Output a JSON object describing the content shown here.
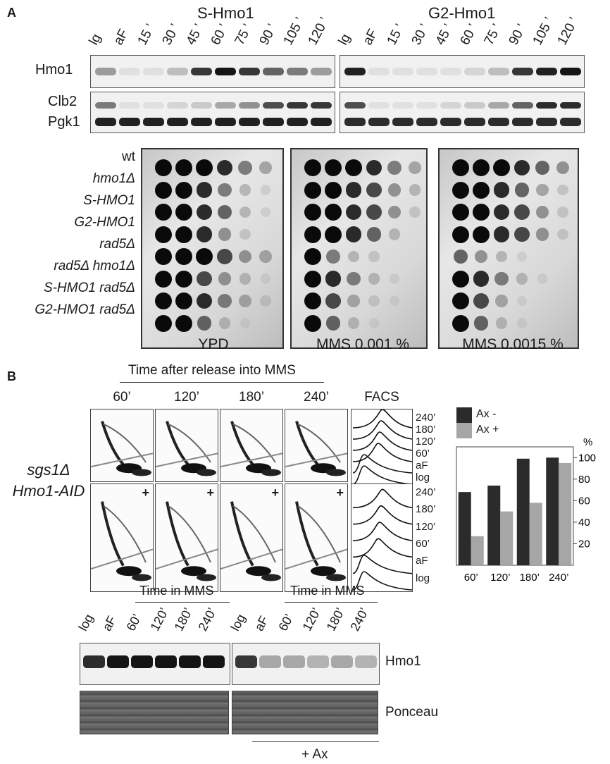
{
  "panel_a": {
    "letter": "A",
    "s_title": "S-Hmo1",
    "g2_title": "G2-Hmo1",
    "lanes": [
      "lg",
      "aF",
      "15 ’",
      "30 ’",
      "45 ’",
      "60 ’",
      "75 ’",
      "90 ’",
      "105 ’",
      "120 ’"
    ],
    "row_hmo1": "Hmo1",
    "row_clb2": "Clb2",
    "row_pgk1": "Pgk1",
    "s_hmo1_intensity": [
      0.35,
      0.05,
      0.05,
      0.2,
      0.8,
      0.95,
      0.8,
      0.6,
      0.5,
      0.35
    ],
    "g2_hmo1_intensity": [
      0.9,
      0.05,
      0.05,
      0.05,
      0.05,
      0.1,
      0.2,
      0.8,
      0.9,
      0.95
    ],
    "s_clb2_intensity": [
      0.5,
      0.05,
      0.05,
      0.1,
      0.15,
      0.3,
      0.4,
      0.7,
      0.8,
      0.8
    ],
    "g2_clb2_intensity": [
      0.7,
      0.05,
      0.05,
      0.05,
      0.1,
      0.15,
      0.3,
      0.6,
      0.85,
      0.85
    ],
    "strains": [
      "wt",
      "hmo1Δ",
      "S-HMO1",
      "G2-HMO1",
      "rad5Δ",
      "rad5Δ hmo1Δ",
      "S-HMO1 rad5Δ",
      "G2-HMO1 rad5Δ"
    ],
    "plate_captions": [
      "YPD",
      "MMS 0.001 %",
      "MMS 0.0015 %"
    ]
  },
  "panel_b": {
    "letter": "B",
    "time_header": "Time after release into MMS",
    "time_labels": [
      "60’",
      "120’",
      "180’",
      "240’"
    ],
    "facs_title": "FACS",
    "facs_labels": [
      "240’",
      "180’",
      "120’",
      "60’",
      "aF",
      "log"
    ],
    "plus": "+",
    "strain_line1": "sgs1Δ",
    "strain_line2": "Hmo1-AID",
    "blot_lanes": [
      "log",
      "aF",
      "60’",
      "120’",
      "180’",
      "240’"
    ],
    "time_in_mms": "Time in MMS",
    "hmo1_label": "Hmo1",
    "ponceau_label": "Ponceau",
    "ax_label": "+ Ax",
    "blot_minus_intensity": [
      0.85,
      0.95,
      0.95,
      0.95,
      0.95,
      0.95
    ],
    "blot_plus_intensity": [
      0.8,
      0.3,
      0.3,
      0.25,
      0.3,
      0.25
    ]
  },
  "chart_data": {
    "type": "bar",
    "categories": [
      "60’",
      "120’",
      "180’",
      "240’"
    ],
    "series": [
      {
        "name": "Ax -",
        "values": [
          68,
          74,
          99,
          100
        ],
        "color": "#2b2b2b"
      },
      {
        "name": "Ax +",
        "values": [
          27,
          50,
          58,
          95
        ],
        "color": "#a6a6a6"
      }
    ],
    "ylabel": "%",
    "ylim": [
      0,
      110
    ],
    "yticks": [
      "20",
      "40",
      "60",
      "80",
      "100"
    ],
    "legend_position": "top"
  }
}
